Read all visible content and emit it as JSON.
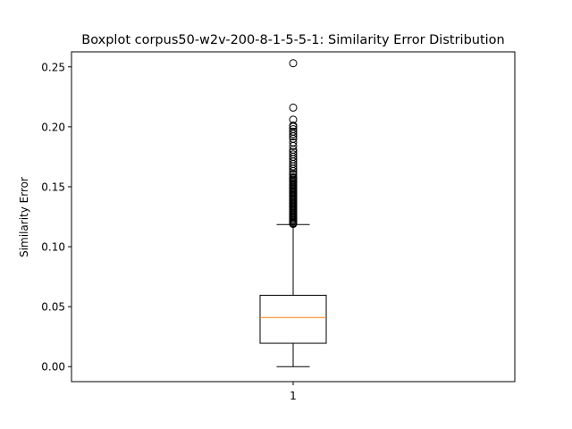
{
  "chart_data": {
    "type": "boxplot",
    "title": "Boxplot corpus50-w2v-200-8-1-5-5-1: Similarity Error Distribution",
    "xlabel": "",
    "ylabel": "Similarity Error",
    "ylim": [
      -0.0125,
      0.2625
    ],
    "yticks": [
      {
        "value": 0.0,
        "label": "0.00"
      },
      {
        "value": 0.05,
        "label": "0.05"
      },
      {
        "value": 0.1,
        "label": "0.10"
      },
      {
        "value": 0.15,
        "label": "0.15"
      },
      {
        "value": 0.2,
        "label": "0.20"
      },
      {
        "value": 0.25,
        "label": "0.25"
      }
    ],
    "categories": [
      "1"
    ],
    "grid": false,
    "colors": {
      "box": "#000000",
      "median": "#ff7f0e",
      "outlier": "#000000"
    },
    "boxes": [
      {
        "category": "1",
        "whisker_low": 0.0,
        "q1": 0.0195,
        "median": 0.041,
        "q3": 0.0595,
        "whisker_high": 0.1185,
        "outliers": [
          0.119,
          0.1195,
          0.12,
          0.121,
          0.122,
          0.123,
          0.124,
          0.125,
          0.126,
          0.127,
          0.128,
          0.129,
          0.13,
          0.131,
          0.132,
          0.133,
          0.134,
          0.135,
          0.136,
          0.137,
          0.138,
          0.139,
          0.14,
          0.141,
          0.142,
          0.143,
          0.144,
          0.145,
          0.146,
          0.147,
          0.148,
          0.149,
          0.15,
          0.151,
          0.152,
          0.153,
          0.154,
          0.155,
          0.156,
          0.157,
          0.158,
          0.16,
          0.161,
          0.163,
          0.165,
          0.167,
          0.169,
          0.171,
          0.173,
          0.175,
          0.177,
          0.179,
          0.181,
          0.184,
          0.187,
          0.19,
          0.192,
          0.194,
          0.196,
          0.198,
          0.2,
          0.201,
          0.206,
          0.216,
          0.253
        ]
      }
    ]
  }
}
